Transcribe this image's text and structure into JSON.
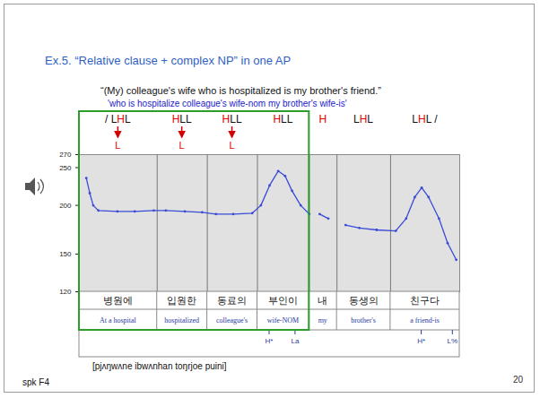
{
  "slide": {
    "title": "Ex.5. “Relative clause + complex NP” in one AP",
    "sentence": "“(My) colleague's wife who is hospitalized is my brother's friend.”",
    "gloss": "'who is hospitalize colleague's wife-nom my brother's wife-is'",
    "transcription": "[pjʌŋwʌne ibwʌnhan toŋrjoe puini]",
    "speaker": "spk F4",
    "page": 20
  },
  "chart_data": {
    "type": "line",
    "x": [
      0.04,
      0.06,
      0.08,
      0.11,
      0.22,
      0.32,
      0.43,
      0.5,
      0.61,
      0.71,
      0.79,
      0.89,
      1.0,
      1.05,
      1.1,
      1.15,
      1.19,
      1.23,
      1.28,
      1.33,
      1.35,
      1.39,
      1.44,
      1.46,
      1.54,
      1.62,
      1.72,
      1.83,
      1.89,
      1.94,
      1.98,
      2.02,
      2.08,
      2.13,
      2.18
    ],
    "values": [
      235,
      215,
      200,
      194,
      193,
      193,
      194,
      194,
      193,
      192,
      190,
      190,
      191,
      200,
      225,
      245,
      238,
      218,
      200,
      190,
      null,
      190,
      185,
      null,
      178,
      175,
      173,
      172,
      185,
      210,
      222,
      210,
      185,
      160,
      145
    ],
    "xlim": [
      0,
      2.2
    ],
    "ylim": [
      120,
      270
    ],
    "yticks": [
      120,
      150,
      200,
      250,
      270
    ],
    "log": "y",
    "color": "#3a4bd6",
    "marker": "dot",
    "tick_labels": "y",
    "intervals": [
      {
        "start": 0,
        "end": 0.45,
        "word": "병원에",
        "gloss": "At a hospital",
        "tones": "/ LHL",
        "target": "L"
      },
      {
        "start": 0.45,
        "end": 0.74,
        "word": "입원한",
        "gloss": "hospitalized",
        "tones": "HLL",
        "target": "L"
      },
      {
        "start": 0.74,
        "end": 1.03,
        "word": "동료의",
        "gloss": "colleague's",
        "tones": "HLL",
        "target": "L"
      },
      {
        "start": 1.03,
        "end": 1.33,
        "word": "부인이",
        "gloss": "wife-NOM",
        "tones": "HLL"
      },
      {
        "start": 1.33,
        "end": 1.49,
        "word": "내",
        "gloss": "my",
        "tones": "H"
      },
      {
        "start": 1.49,
        "end": 1.8,
        "word": "동생의",
        "gloss": "brother's",
        "tones": "LHL"
      },
      {
        "start": 1.8,
        "end": 2.2,
        "word": "친구다",
        "gloss": "a friend-is",
        "tones": "LHL /"
      }
    ],
    "tone_tier": [
      {
        "time": 1.1,
        "label": "H*"
      },
      {
        "time": 1.25,
        "label": "La"
      },
      {
        "time": 1.98,
        "label": "H*"
      },
      {
        "time": 2.16,
        "label": "L%"
      }
    ]
  }
}
